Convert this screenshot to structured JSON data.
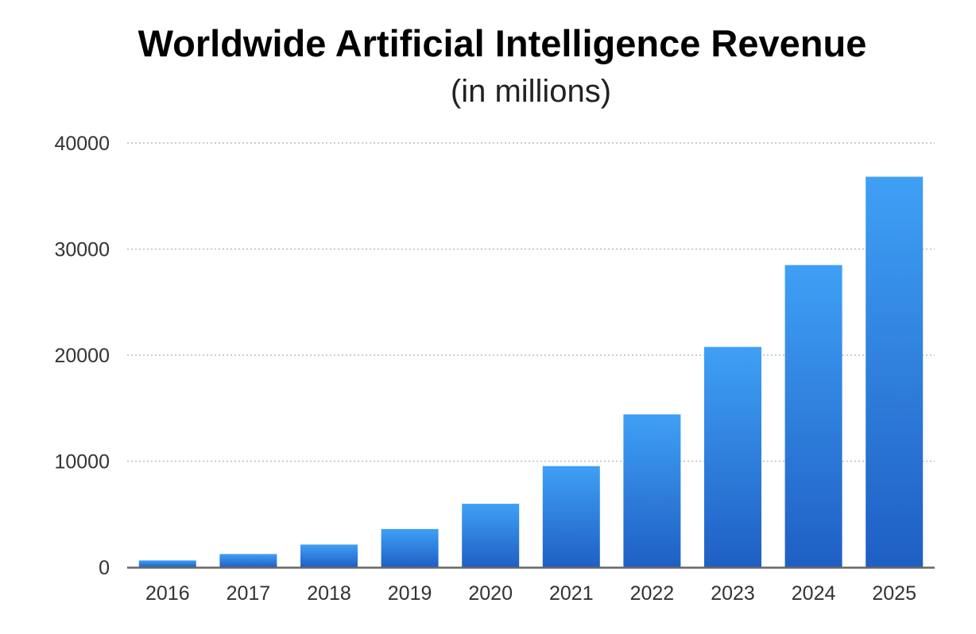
{
  "chart_data": {
    "type": "bar",
    "title": "Worldwide Artificial Intelligence Revenue",
    "subtitle": "(in millions)",
    "xlabel": "",
    "ylabel": "",
    "categories": [
      "2016",
      "2017",
      "2018",
      "2019",
      "2020",
      "2021",
      "2022",
      "2023",
      "2024",
      "2025"
    ],
    "values": [
      644,
      1248,
      2140,
      3606,
      5985,
      9539,
      14416,
      20772,
      28491,
      36819
    ],
    "ylim": [
      0,
      40000
    ],
    "yticks": [
      "0",
      "10000",
      "20000",
      "30000",
      "40000"
    ],
    "grid": true,
    "legend": "none",
    "colors": {
      "bar_top": "#3fa0f5",
      "bar_bottom": "#1f5fc4",
      "grid": "#bbbbbb",
      "axis": "#666666"
    }
  }
}
